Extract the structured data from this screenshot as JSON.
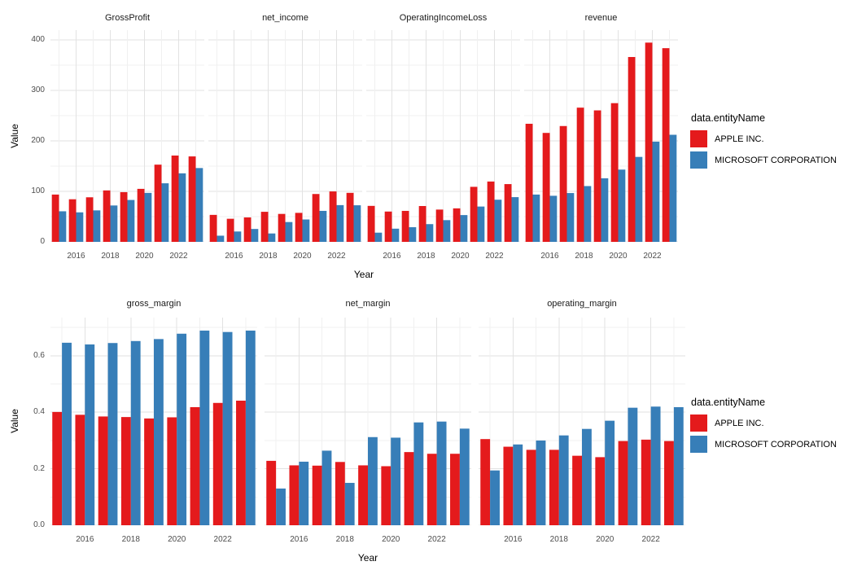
{
  "figure": {
    "background": "#FFFFFF",
    "axis_label_x": "Year",
    "axis_label_y": "Value",
    "grid_major_color": "#E2E2E2",
    "grid_minor_color": "#F0F0F0",
    "legend": {
      "title": "data.entityName",
      "entries": [
        {
          "label": "APPLE INC.",
          "color": "#E41A1C"
        },
        {
          "label": "MICROSOFT CORPORATION",
          "color": "#377EB8"
        }
      ]
    },
    "x_tick_labels": [
      "2016",
      "2018",
      "2020",
      "2022"
    ],
    "top_row_y_tick_labels": [
      "0",
      "100",
      "200",
      "300",
      "400"
    ],
    "bottom_row_y_tick_labels": [
      "0.0",
      "0.2",
      "0.4",
      "0.6"
    ]
  },
  "chart_data": [
    {
      "type": "bar",
      "title": "GrossProfit",
      "row": 0,
      "xlabel": "Year",
      "ylabel": "Value",
      "categories": [
        2015,
        2016,
        2017,
        2018,
        2019,
        2020,
        2021,
        2022,
        2023
      ],
      "ylim": [
        0,
        400
      ],
      "yticks": [
        0,
        100,
        200,
        300,
        400
      ],
      "grid": true,
      "legend_position": "right",
      "series": [
        {
          "name": "APPLE INC.",
          "values": [
            93.6,
            84.3,
            88.2,
            101.8,
            98.4,
            104.9,
            152.8,
            170.8,
            169.1
          ]
        },
        {
          "name": "MICROSOFT CORPORATION",
          "values": [
            60.5,
            58.4,
            62.3,
            72.0,
            82.9,
            96.9,
            115.9,
            135.6,
            146.1
          ]
        }
      ]
    },
    {
      "type": "bar",
      "title": "net_income",
      "row": 0,
      "xlabel": "Year",
      "ylabel": "Value",
      "categories": [
        2015,
        2016,
        2017,
        2018,
        2019,
        2020,
        2021,
        2022,
        2023
      ],
      "ylim": [
        0,
        400
      ],
      "yticks": [
        0,
        100,
        200,
        300,
        400
      ],
      "grid": true,
      "legend_position": "right",
      "series": [
        {
          "name": "APPLE INC.",
          "values": [
            53.4,
            45.7,
            48.4,
            59.5,
            55.3,
            57.4,
            94.7,
            99.8,
            97.0
          ]
        },
        {
          "name": "MICROSOFT CORPORATION",
          "values": [
            12.2,
            20.5,
            25.5,
            16.6,
            39.2,
            44.3,
            61.3,
            72.7,
            72.4
          ]
        }
      ]
    },
    {
      "type": "bar",
      "title": "OperatingIncomeLoss",
      "row": 0,
      "xlabel": "Year",
      "ylabel": "Value",
      "categories": [
        2015,
        2016,
        2017,
        2018,
        2019,
        2020,
        2021,
        2022,
        2023
      ],
      "ylim": [
        0,
        400
      ],
      "yticks": [
        0,
        100,
        200,
        300,
        400
      ],
      "grid": true,
      "legend_position": "right",
      "series": [
        {
          "name": "APPLE INC.",
          "values": [
            71.2,
            60.0,
            61.3,
            70.9,
            63.9,
            66.3,
            108.9,
            119.4,
            114.3
          ]
        },
        {
          "name": "MICROSOFT CORPORATION",
          "values": [
            18.2,
            26.1,
            29.0,
            35.1,
            43.0,
            53.0,
            69.9,
            83.4,
            88.5
          ]
        }
      ]
    },
    {
      "type": "bar",
      "title": "revenue",
      "row": 0,
      "xlabel": "Year",
      "ylabel": "Value",
      "categories": [
        2015,
        2016,
        2017,
        2018,
        2019,
        2020,
        2021,
        2022,
        2023
      ],
      "ylim": [
        0,
        400
      ],
      "yticks": [
        0,
        100,
        200,
        300,
        400
      ],
      "grid": true,
      "legend_position": "right",
      "series": [
        {
          "name": "APPLE INC.",
          "values": [
            233.7,
            215.6,
            229.2,
            265.6,
            260.2,
            274.5,
            365.8,
            394.3,
            383.3
          ]
        },
        {
          "name": "MICROSOFT CORPORATION",
          "values": [
            93.6,
            91.2,
            96.6,
            110.4,
            125.8,
            143.0,
            168.1,
            198.3,
            211.9
          ]
        }
      ]
    },
    {
      "type": "bar",
      "title": "gross_margin",
      "row": 1,
      "xlabel": "Year",
      "ylabel": "Value",
      "categories": [
        2015,
        2016,
        2017,
        2018,
        2019,
        2020,
        2021,
        2022,
        2023
      ],
      "ylim": [
        0,
        0.7
      ],
      "yticks": [
        0.0,
        0.2,
        0.4,
        0.6
      ],
      "grid": true,
      "legend_position": "right",
      "series": [
        {
          "name": "APPLE INC.",
          "values": [
            0.401,
            0.391,
            0.385,
            0.383,
            0.378,
            0.382,
            0.418,
            0.433,
            0.441
          ]
        },
        {
          "name": "MICROSOFT CORPORATION",
          "values": [
            0.646,
            0.64,
            0.645,
            0.652,
            0.659,
            0.678,
            0.689,
            0.684,
            0.689
          ]
        }
      ]
    },
    {
      "type": "bar",
      "title": "net_margin",
      "row": 1,
      "xlabel": "Year",
      "ylabel": "Value",
      "categories": [
        2015,
        2016,
        2017,
        2018,
        2019,
        2020,
        2021,
        2022,
        2023
      ],
      "ylim": [
        0,
        0.7
      ],
      "yticks": [
        0.0,
        0.2,
        0.4,
        0.6
      ],
      "grid": true,
      "legend_position": "right",
      "series": [
        {
          "name": "APPLE INC.",
          "values": [
            0.228,
            0.212,
            0.211,
            0.224,
            0.212,
            0.209,
            0.259,
            0.253,
            0.253
          ]
        },
        {
          "name": "MICROSOFT CORPORATION",
          "values": [
            0.13,
            0.225,
            0.264,
            0.15,
            0.312,
            0.31,
            0.364,
            0.367,
            0.342
          ]
        }
      ]
    },
    {
      "type": "bar",
      "title": "operating_margin",
      "row": 1,
      "xlabel": "Year",
      "ylabel": "Value",
      "categories": [
        2015,
        2016,
        2017,
        2018,
        2019,
        2020,
        2021,
        2022,
        2023
      ],
      "ylim": [
        0,
        0.7
      ],
      "yticks": [
        0.0,
        0.2,
        0.4,
        0.6
      ],
      "grid": true,
      "legend_position": "right",
      "series": [
        {
          "name": "APPLE INC.",
          "values": [
            0.305,
            0.278,
            0.267,
            0.267,
            0.246,
            0.241,
            0.298,
            0.303,
            0.298
          ]
        },
        {
          "name": "MICROSOFT CORPORATION",
          "values": [
            0.194,
            0.286,
            0.3,
            0.318,
            0.341,
            0.37,
            0.416,
            0.42,
            0.418
          ]
        }
      ]
    }
  ]
}
